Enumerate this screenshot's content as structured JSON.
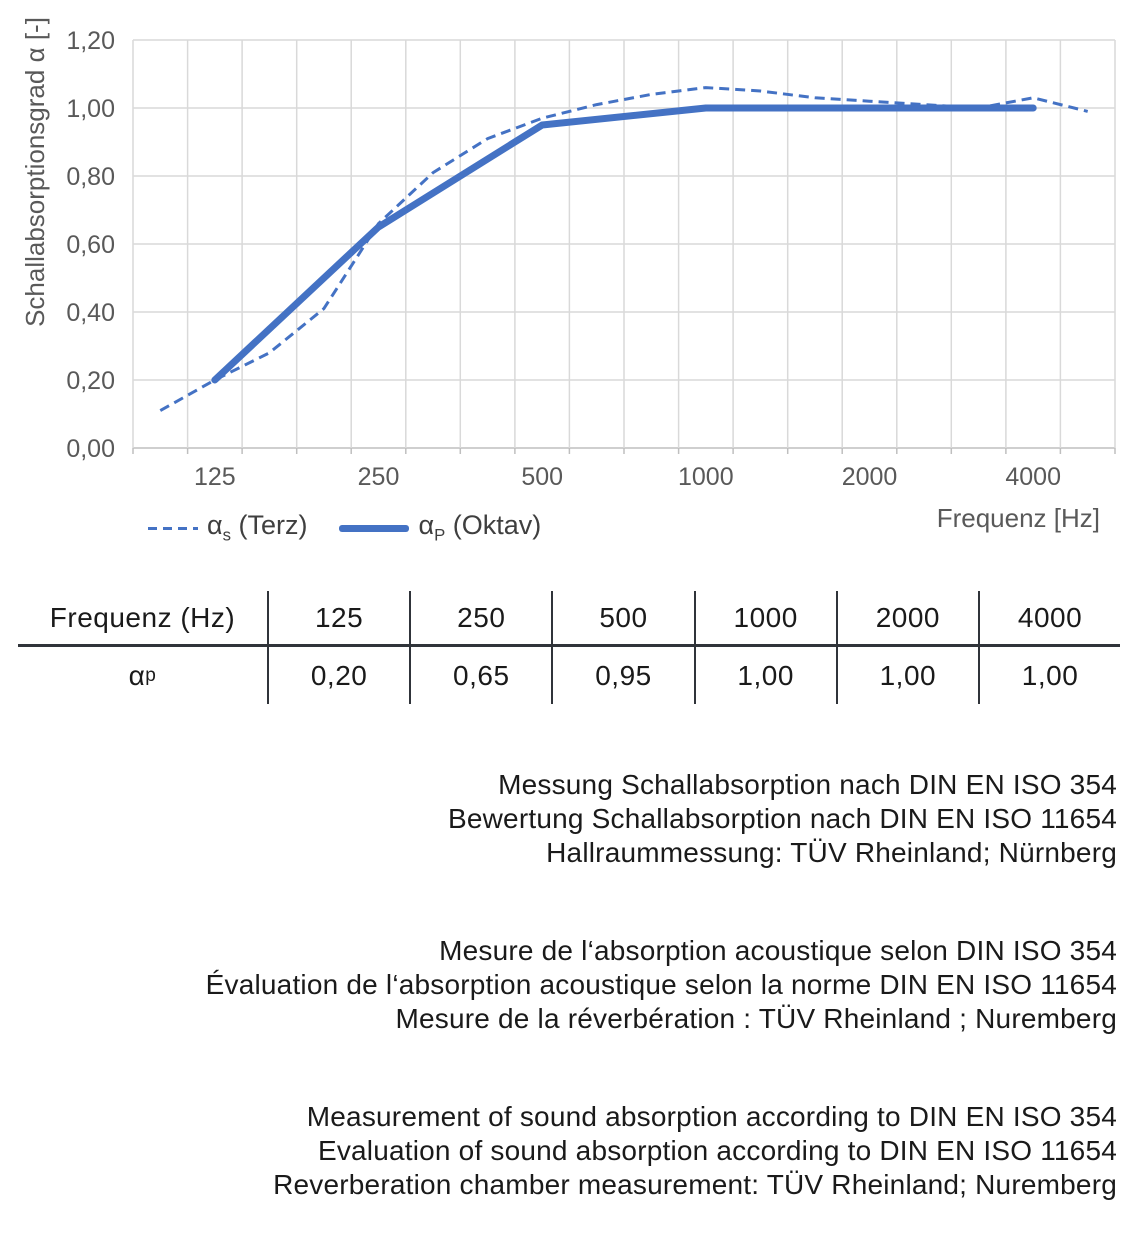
{
  "chart_data": {
    "type": "line",
    "title": "",
    "ylabel": "Schallabsorptionsgrad α [-]",
    "xlabel": "Frequenz [Hz]",
    "x_scale": "third-octave categories (logarithmic octave spacing)",
    "categories": [
      100,
      125,
      160,
      200,
      250,
      315,
      400,
      500,
      630,
      800,
      1000,
      1250,
      1600,
      2000,
      2500,
      3150,
      4000,
      5000
    ],
    "x_tick_labels": [
      "125",
      "250",
      "500",
      "1000",
      "2000",
      "4000"
    ],
    "x_tick_category_indices": [
      1,
      4,
      7,
      10,
      13,
      16
    ],
    "y_tick_labels": [
      "0,00",
      "0,20",
      "0,40",
      "0,60",
      "0,80",
      "1,00",
      "1,20"
    ],
    "ylim": [
      0,
      1.2
    ],
    "grid": true,
    "legend_position": "bottom-left",
    "accent_color": "#4472C4",
    "series": [
      {
        "name": "αs (Terz)",
        "symbol": "α",
        "sub": "s",
        "label_rest": " (Terz)",
        "style": "dashed",
        "values": [
          0.11,
          0.2,
          0.28,
          0.41,
          0.66,
          0.81,
          0.91,
          0.97,
          1.01,
          1.04,
          1.06,
          1.05,
          1.03,
          1.02,
          1.01,
          1.0,
          1.03,
          0.99
        ]
      },
      {
        "name": "αP (Oktav)",
        "symbol": "α",
        "sub": "P",
        "label_rest": " (Oktav)",
        "style": "solid",
        "values": [
          null,
          0.2,
          null,
          null,
          0.65,
          null,
          null,
          0.95,
          null,
          null,
          1.0,
          null,
          null,
          1.0,
          null,
          null,
          1.0,
          null
        ]
      }
    ]
  },
  "table": {
    "header_label": "Frequenz (Hz)",
    "row_symbol": "α",
    "row_sub": "p",
    "columns": [
      "125",
      "250",
      "500",
      "1000",
      "2000",
      "4000"
    ],
    "values": [
      "0,20",
      "0,65",
      "0,95",
      "1,00",
      "1,00",
      "1,00"
    ]
  },
  "notes": {
    "german": [
      "Messung Schallabsorption nach DIN EN ISO 354",
      "Bewertung Schallabsorption nach DIN EN ISO 11654",
      "Hallraummessung: TÜV Rheinland; Nürnberg"
    ],
    "french": [
      "Mesure de l‘absorption acoustique selon DIN ISO 354",
      "Évaluation de l‘absorption acoustique selon la norme DIN EN ISO 11654",
      "Mesure de la réverbération : TÜV Rheinland ; Nuremberg"
    ],
    "english": [
      "Measurement of sound absorption according to DIN EN ISO 354",
      "Evaluation of sound absorption according to DIN EN ISO 11654",
      "Reverberation chamber measurement: TÜV Rheinland; Nuremberg"
    ]
  }
}
